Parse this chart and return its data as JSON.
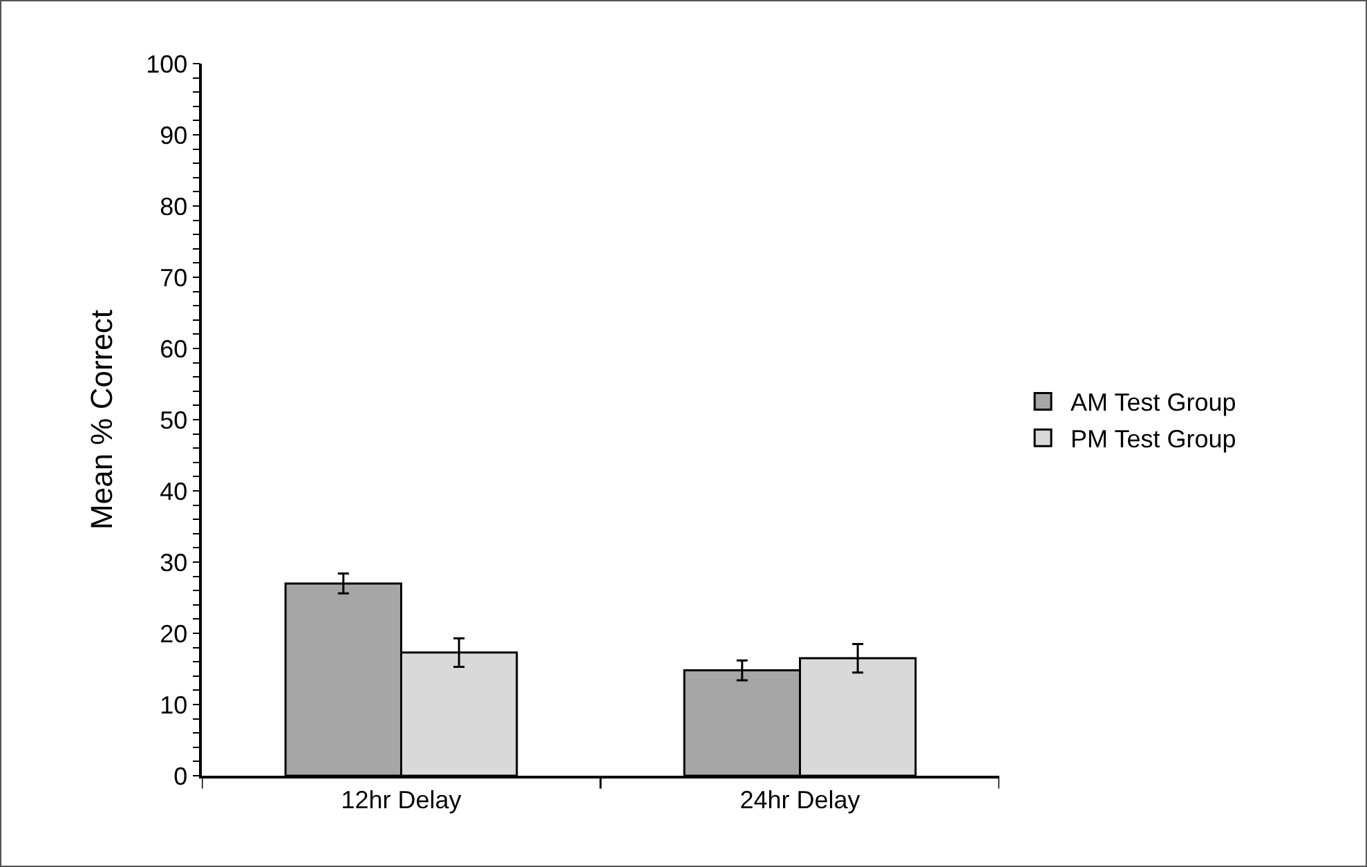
{
  "chart_data": {
    "type": "bar",
    "ylabel": "Mean % Correct",
    "categories": [
      "12hr Delay",
      "24hr Delay"
    ],
    "series": [
      {
        "name": "AM Test Group",
        "color": "#a6a6a6",
        "values": [
          27.0,
          14.8
        ],
        "errors": [
          1.4,
          1.4
        ]
      },
      {
        "name": "PM Test Group",
        "color": "#d9d9d9",
        "values": [
          17.3,
          16.5
        ],
        "errors": [
          2.0,
          2.0
        ]
      }
    ],
    "ylim": [
      0,
      100
    ],
    "yticks": [
      0,
      {
        "value": 2,
        "label": null
      },
      {
        "value": 4,
        "label": null
      },
      {
        "value": 6,
        "label": null
      },
      {
        "value": 8,
        "label": null
      },
      10,
      {
        "value": 12,
        "label": null
      },
      {
        "value": 14,
        "label": null
      },
      {
        "value": 16,
        "label": null
      },
      {
        "value": 18,
        "label": null
      },
      20,
      {
        "value": 22,
        "label": null
      },
      {
        "value": 24,
        "label": null
      },
      {
        "value": 26,
        "label": null
      },
      {
        "value": 28,
        "label": null
      },
      30,
      {
        "value": 32,
        "label": null
      },
      {
        "value": 34,
        "label": null
      },
      {
        "value": 36,
        "label": null
      },
      {
        "value": 38,
        "label": null
      },
      40,
      {
        "value": 42,
        "label": null
      },
      {
        "value": 44,
        "label": null
      },
      {
        "value": 46,
        "label": null
      },
      {
        "value": 48,
        "label": null
      },
      50,
      {
        "value": 52,
        "label": null
      },
      {
        "value": 54,
        "label": null
      },
      {
        "value": 56,
        "label": null
      },
      {
        "value": 58,
        "label": null
      },
      60,
      {
        "value": 62,
        "label": null
      },
      {
        "value": 64,
        "label": null
      },
      {
        "value": 66,
        "label": null
      },
      {
        "value": 68,
        "label": null
      },
      70,
      {
        "value": 72,
        "label": null
      },
      {
        "value": 74,
        "label": null
      },
      {
        "value": 76,
        "label": null
      },
      {
        "value": 78,
        "label": null
      },
      80,
      {
        "value": 82,
        "label": null
      },
      {
        "value": 84,
        "label": null
      },
      {
        "value": 86,
        "label": null
      },
      {
        "value": 88,
        "label": null
      },
      90,
      {
        "value": 92,
        "label": null
      },
      {
        "value": 94,
        "label": null
      },
      {
        "value": 96,
        "label": null
      },
      {
        "value": 98,
        "label": null
      },
      100
    ],
    "grid": false,
    "legend": "right"
  }
}
